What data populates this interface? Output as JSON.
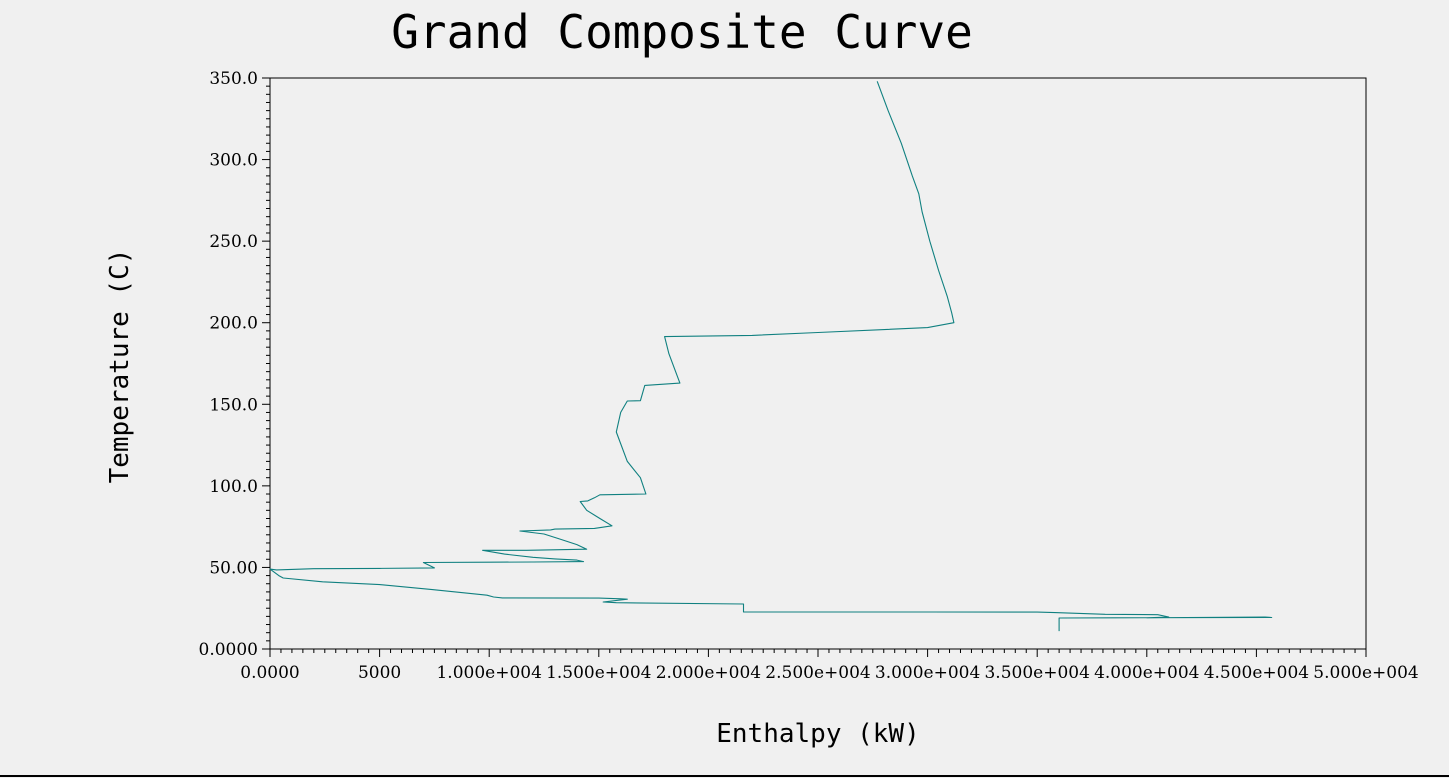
{
  "chart_data": {
    "type": "line",
    "title": "Grand Composite Curve",
    "xlabel": "Enthalpy (kW)",
    "ylabel": "Temperature (C)",
    "xlim": [
      0,
      50000
    ],
    "ylim": [
      0,
      350
    ],
    "x_ticks": [
      {
        "value": 0,
        "label": "0.0000"
      },
      {
        "value": 5000,
        "label": "5000"
      },
      {
        "value": 10000,
        "label": "1.000e+004"
      },
      {
        "value": 15000,
        "label": "1.500e+004"
      },
      {
        "value": 20000,
        "label": "2.000e+004"
      },
      {
        "value": 25000,
        "label": "2.500e+004"
      },
      {
        "value": 30000,
        "label": "3.000e+004"
      },
      {
        "value": 35000,
        "label": "3.500e+004"
      },
      {
        "value": 40000,
        "label": "4.000e+004"
      },
      {
        "value": 45000,
        "label": "4.500e+004"
      },
      {
        "value": 50000,
        "label": "5.000e+004"
      }
    ],
    "y_ticks": [
      {
        "value": 0,
        "label": "0.0000"
      },
      {
        "value": 50,
        "label": "50.00"
      },
      {
        "value": 100,
        "label": "100.0"
      },
      {
        "value": 150,
        "label": "150.0"
      },
      {
        "value": 200,
        "label": "200.0"
      },
      {
        "value": 250,
        "label": "250.0"
      },
      {
        "value": 300,
        "label": "300.0"
      },
      {
        "value": 350,
        "label": "350.0"
      }
    ],
    "grid": false,
    "line_color": "#108080",
    "series": [
      {
        "points": [
          [
            27700,
            348
          ],
          [
            28200,
            330
          ],
          [
            28800,
            310
          ],
          [
            29300,
            290
          ],
          [
            29600,
            279
          ],
          [
            29750,
            268
          ],
          [
            30100,
            250
          ],
          [
            30500,
            232
          ],
          [
            30900,
            216
          ],
          [
            31100,
            206
          ],
          [
            31200,
            200
          ],
          [
            30000,
            197
          ],
          [
            25000,
            194
          ],
          [
            22000,
            192.2
          ],
          [
            18000,
            191.5
          ],
          [
            18200,
            181
          ],
          [
            18700,
            163
          ],
          [
            17100,
            161.6
          ],
          [
            16900,
            152.2
          ],
          [
            16300,
            152
          ],
          [
            16000,
            145
          ],
          [
            15800,
            133
          ],
          [
            16300,
            115
          ],
          [
            16900,
            105
          ],
          [
            17150,
            95
          ],
          [
            15050,
            94.5
          ],
          [
            14800,
            92.7
          ],
          [
            14500,
            90.8
          ],
          [
            14150,
            90.4
          ],
          [
            14450,
            85
          ],
          [
            15050,
            80
          ],
          [
            15600,
            75.5
          ],
          [
            14800,
            73.9
          ],
          [
            13000,
            73.5
          ],
          [
            12800,
            73
          ],
          [
            11400,
            72.3
          ],
          [
            12500,
            70.5
          ],
          [
            13200,
            67.5
          ],
          [
            14000,
            64
          ],
          [
            14450,
            61.2
          ],
          [
            11700,
            60.5
          ],
          [
            9700,
            60.5
          ],
          [
            10700,
            58.2
          ],
          [
            12000,
            56.2
          ],
          [
            13000,
            55.2
          ],
          [
            14000,
            54.5
          ],
          [
            14300,
            53.6
          ],
          [
            12000,
            53.3
          ],
          [
            10000,
            53.2
          ],
          [
            7000,
            53
          ],
          [
            7500,
            49.7
          ],
          [
            5000,
            49.4
          ],
          [
            2000,
            49.2
          ],
          [
            300,
            48.5
          ],
          [
            0,
            49
          ],
          [
            400,
            45
          ],
          [
            600,
            43.5
          ],
          [
            2400,
            41.2
          ],
          [
            5000,
            39.5
          ],
          [
            7400,
            36.4
          ],
          [
            9900,
            33
          ],
          [
            10200,
            31.9
          ],
          [
            10600,
            31.3
          ],
          [
            15000,
            31.2
          ],
          [
            16000,
            30.8
          ],
          [
            16300,
            30.5
          ],
          [
            15200,
            28.8
          ],
          [
            15800,
            28.4
          ],
          [
            21600,
            27.6
          ],
          [
            21600,
            22.7
          ],
          [
            25000,
            22.7
          ],
          [
            30000,
            22.7
          ],
          [
            35000,
            22.6
          ],
          [
            35800,
            22.3
          ],
          [
            38100,
            21.3
          ],
          [
            40500,
            21
          ],
          [
            41000,
            19.6
          ],
          [
            40000,
            19.1
          ],
          [
            45400,
            19.6
          ],
          [
            45700,
            19.3
          ],
          [
            38500,
            19.1
          ],
          [
            36000,
            19
          ],
          [
            36000,
            15
          ],
          [
            36000,
            11
          ]
        ]
      }
    ]
  }
}
